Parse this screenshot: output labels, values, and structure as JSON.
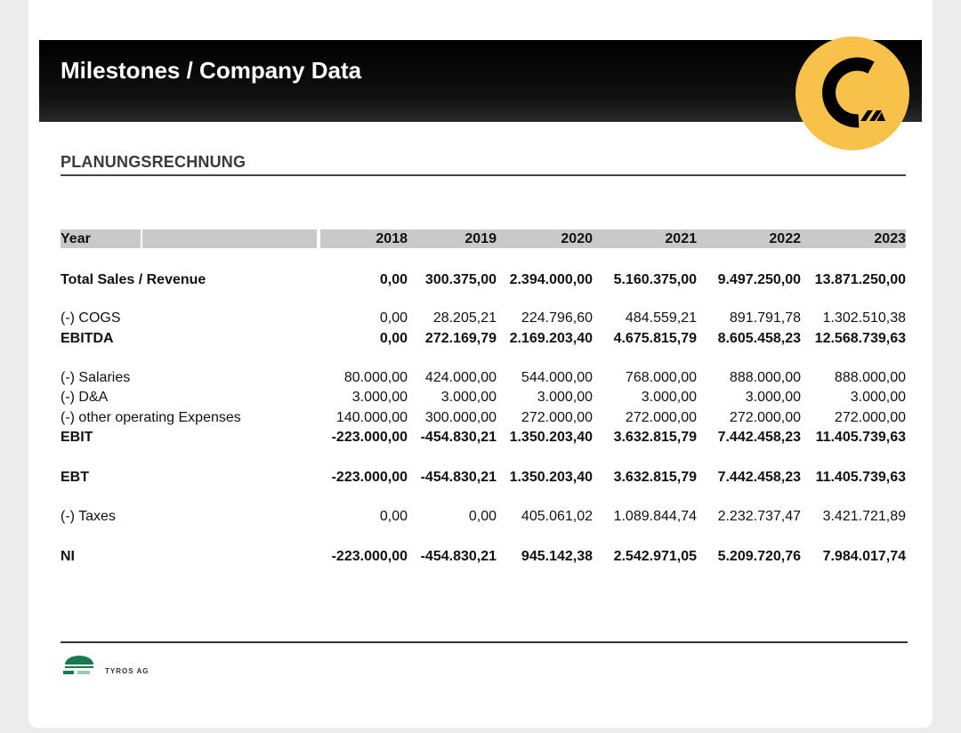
{
  "header": {
    "title": "Milestones / Company Data"
  },
  "logo_color": "#f8c24a",
  "section_title": "PLANUNGSRECHNUNG",
  "table": {
    "year_label": "Year",
    "years": [
      "2018",
      "2019",
      "2020",
      "2021",
      "2022",
      "2023"
    ],
    "rows": [
      {
        "label": "Total Sales / Revenue",
        "bold": true,
        "values": [
          "0,00",
          "300.375,00",
          "2.394.000,00",
          "5.160.375,00",
          "9.497.250,00",
          "13.871.250,00"
        ]
      },
      {
        "label": "(-) COGS",
        "bold": false,
        "values": [
          "0,00",
          "28.205,21",
          "224.796,60",
          "484.559,21",
          "891.791,78",
          "1.302.510,38"
        ]
      },
      {
        "label": "EBITDA",
        "bold": true,
        "values": [
          "0,00",
          "272.169,79",
          "2.169.203,40",
          "4.675.815,79",
          "8.605.458,23",
          "12.568.739,63"
        ]
      },
      {
        "label": "(-) Salaries",
        "bold": false,
        "values": [
          "80.000,00",
          "424.000,00",
          "544.000,00",
          "768.000,00",
          "888.000,00",
          "888.000,00"
        ]
      },
      {
        "label": "(-) D&A",
        "bold": false,
        "values": [
          "3.000,00",
          "3.000,00",
          "3.000,00",
          "3.000,00",
          "3.000,00",
          "3.000,00"
        ]
      },
      {
        "label": "(-) other operating Expenses",
        "bold": false,
        "values": [
          "140.000,00",
          "300.000,00",
          "272.000,00",
          "272.000,00",
          "272.000,00",
          "272.000,00"
        ]
      },
      {
        "label": "EBIT",
        "bold": true,
        "values": [
          "-223.000,00",
          "-454.830,21",
          "1.350.203,40",
          "3.632.815,79",
          "7.442.458,23",
          "11.405.739,63"
        ]
      },
      {
        "label": "EBT",
        "bold": true,
        "values": [
          "-223.000,00",
          "-454.830,21",
          "1.350.203,40",
          "3.632.815,79",
          "7.442.458,23",
          "11.405.739,63"
        ]
      },
      {
        "label": "(-) Taxes",
        "bold": false,
        "values": [
          "0,00",
          "0,00",
          "405.061,02",
          "1.089.844,74",
          "2.232.737,47",
          "3.421.721,89"
        ]
      },
      {
        "label": "NI",
        "bold": true,
        "values": [
          "-223.000,00",
          "-454.830,21",
          "945.142,38",
          "2.542.971,05",
          "5.209.720,76",
          "7.984.017,74"
        ]
      }
    ]
  },
  "footer": {
    "company": "TYROS AG"
  }
}
